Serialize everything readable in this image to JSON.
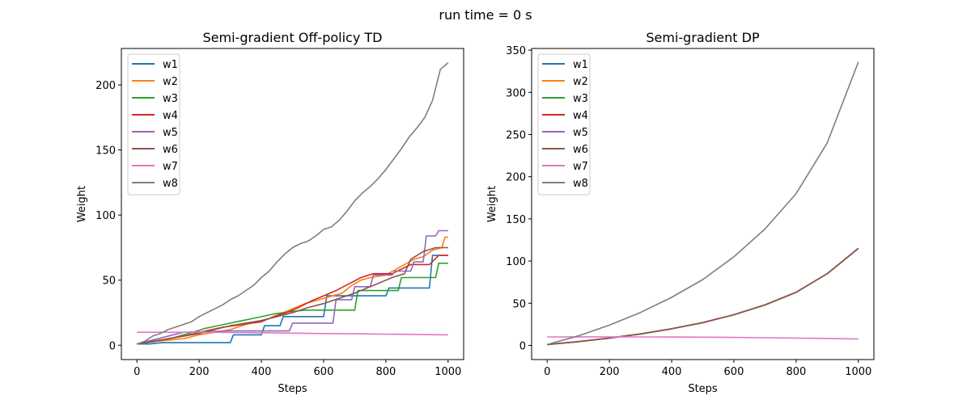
{
  "suptitle": "run time = 0 s",
  "chart_data": [
    {
      "type": "line",
      "title": "Semi-gradient Off-policy TD",
      "xlabel": "Steps",
      "ylabel": "Weight",
      "xlim": [
        -50,
        1050
      ],
      "ylim": [
        -11,
        228
      ],
      "xticks": [
        0,
        200,
        400,
        600,
        800,
        1000
      ],
      "yticks": [
        0,
        50,
        100,
        150,
        200
      ],
      "grid": false,
      "legend": "upper left",
      "series": [
        {
          "name": "w1",
          "color": "#1f77b4",
          "x": [
            0,
            40,
            80,
            300,
            310,
            400,
            410,
            460,
            470,
            600,
            610,
            800,
            810,
            940,
            950,
            1000
          ],
          "y": [
            1,
            1,
            2,
            2,
            8,
            8,
            15,
            15,
            22,
            22,
            38,
            38,
            44,
            44,
            69,
            69
          ]
        },
        {
          "name": "w2",
          "color": "#ff7f0e",
          "x": [
            0,
            60,
            150,
            200,
            300,
            350,
            420,
            460,
            500,
            540,
            570,
            600,
            660,
            690,
            720,
            750,
            800,
            830,
            860,
            890,
            920,
            950,
            980,
            990,
            1000
          ],
          "y": [
            1,
            3,
            5,
            8,
            12,
            16,
            20,
            24,
            28,
            32,
            34,
            36,
            40,
            46,
            50,
            52,
            54,
            58,
            62,
            66,
            68,
            73,
            75,
            83,
            83
          ]
        },
        {
          "name": "w3",
          "color": "#2ca02c",
          "x": [
            0,
            60,
            120,
            180,
            220,
            260,
            300,
            340,
            380,
            440,
            500,
            540,
            580,
            700,
            710,
            840,
            850,
            960,
            970,
            1000
          ],
          "y": [
            1,
            3,
            6,
            10,
            13,
            15,
            17,
            19,
            21,
            24,
            26,
            27,
            27,
            27,
            42,
            42,
            52,
            52,
            63,
            63
          ]
        },
        {
          "name": "w4",
          "color": "#d62728",
          "x": [
            0,
            80,
            150,
            220,
            280,
            340,
            400,
            440,
            480,
            520,
            560,
            600,
            640,
            680,
            720,
            760,
            820,
            880,
            940,
            970,
            1000
          ],
          "y": [
            1,
            4,
            7,
            11,
            14,
            16,
            18,
            22,
            25,
            29,
            34,
            38,
            42,
            47,
            52,
            55,
            55,
            62,
            62,
            69,
            69
          ]
        },
        {
          "name": "w5",
          "color": "#9467bd",
          "x": [
            0,
            150,
            300,
            400,
            490,
            500,
            630,
            640,
            690,
            700,
            750,
            760,
            820,
            830,
            880,
            890,
            920,
            930,
            960,
            970,
            1000
          ],
          "y": [
            1,
            10,
            11,
            11,
            11,
            17,
            17,
            35,
            35,
            45,
            45,
            54,
            54,
            57,
            57,
            64,
            64,
            84,
            84,
            88,
            88
          ]
        },
        {
          "name": "w6",
          "color": "#8c564b",
          "x": [
            0,
            100,
            200,
            250,
            300,
            350,
            400,
            450,
            500,
            550,
            600,
            650,
            700,
            740,
            780,
            820,
            860,
            880,
            920,
            960,
            1000
          ],
          "y": [
            1,
            5,
            9,
            12,
            15,
            17,
            19,
            22,
            25,
            29,
            32,
            36,
            40,
            44,
            48,
            52,
            55,
            66,
            72,
            75,
            75
          ]
        },
        {
          "name": "w7",
          "color": "#e377c2",
          "x": [
            0,
            100,
            200,
            300,
            400,
            500,
            600,
            700,
            800,
            900,
            1000
          ],
          "y": [
            10,
            10,
            10,
            9.8,
            9.6,
            9.3,
            9,
            8.8,
            8.5,
            8.3,
            8
          ]
        },
        {
          "name": "w8",
          "color": "#7f7f7f",
          "x": [
            0,
            25,
            50,
            75,
            100,
            125,
            150,
            175,
            200,
            225,
            250,
            275,
            300,
            325,
            350,
            375,
            400,
            425,
            450,
            475,
            500,
            525,
            550,
            575,
            600,
            625,
            650,
            675,
            700,
            725,
            750,
            775,
            800,
            825,
            850,
            875,
            900,
            925,
            950,
            975,
            1000
          ],
          "y": [
            1,
            3,
            7,
            9,
            12,
            14,
            16,
            18,
            22,
            25,
            28,
            31,
            35,
            38,
            42,
            46,
            52,
            57,
            64,
            70,
            75,
            78,
            80,
            84,
            89,
            91,
            96,
            103,
            111,
            117,
            122,
            128,
            135,
            143,
            151,
            160,
            167,
            175,
            188,
            212,
            217
          ]
        }
      ]
    },
    {
      "type": "line",
      "title": "Semi-gradient DP",
      "xlabel": "Steps",
      "ylabel": "Weight",
      "xlim": [
        -50,
        1050
      ],
      "ylim": [
        -16.8,
        352
      ],
      "xticks": [
        0,
        200,
        400,
        600,
        800,
        1000
      ],
      "yticks": [
        0,
        50,
        100,
        150,
        200,
        250,
        300,
        350
      ],
      "grid": false,
      "legend": "upper left",
      "series": [
        {
          "name": "w1",
          "color": "#1f77b4",
          "x": [
            0,
            100,
            200,
            300,
            400,
            500,
            600,
            700,
            800,
            900,
            1000
          ],
          "y": [
            1,
            4.5,
            8.7,
            13.6,
            19.7,
            27,
            36.4,
            48,
            63,
            85,
            115
          ]
        },
        {
          "name": "w2",
          "color": "#ff7f0e",
          "x": [
            0,
            100,
            200,
            300,
            400,
            500,
            600,
            700,
            800,
            900,
            1000
          ],
          "y": [
            1,
            4.5,
            8.7,
            13.6,
            19.7,
            27,
            36.4,
            48,
            63,
            85,
            115
          ]
        },
        {
          "name": "w3",
          "color": "#2ca02c",
          "x": [
            0,
            100,
            200,
            300,
            400,
            500,
            600,
            700,
            800,
            900,
            1000
          ],
          "y": [
            1,
            4.5,
            8.7,
            13.6,
            19.7,
            27,
            36.4,
            48,
            63,
            85,
            115
          ]
        },
        {
          "name": "w4",
          "color": "#d62728",
          "x": [
            0,
            100,
            200,
            300,
            400,
            500,
            600,
            700,
            800,
            900,
            1000
          ],
          "y": [
            1,
            4.5,
            8.7,
            13.6,
            19.7,
            27,
            36.4,
            48,
            63,
            85,
            115
          ]
        },
        {
          "name": "w5",
          "color": "#9467bd",
          "x": [
            0,
            100,
            200,
            300,
            400,
            500,
            600,
            700,
            800,
            900,
            1000
          ],
          "y": [
            1,
            4.5,
            8.7,
            13.6,
            19.7,
            27,
            36.4,
            48,
            63,
            85,
            115
          ]
        },
        {
          "name": "w6",
          "color": "#8c564b",
          "x": [
            0,
            100,
            200,
            300,
            400,
            500,
            600,
            700,
            800,
            900,
            1000
          ],
          "y": [
            1,
            4.5,
            8.7,
            13.6,
            19.7,
            27,
            36.4,
            48,
            63,
            85,
            115
          ]
        },
        {
          "name": "w7",
          "color": "#e377c2",
          "x": [
            0,
            100,
            200,
            300,
            400,
            500,
            600,
            700,
            800,
            900,
            1000
          ],
          "y": [
            10,
            10.1,
            10.1,
            10,
            9.9,
            9.7,
            9.4,
            9.1,
            8.7,
            8.2,
            7.5
          ]
        },
        {
          "name": "w8",
          "color": "#7f7f7f",
          "x": [
            0,
            100,
            200,
            300,
            400,
            500,
            600,
            700,
            800,
            900,
            1000
          ],
          "y": [
            1,
            11.3,
            24,
            39,
            57,
            78,
            105,
            138,
            180,
            240,
            336
          ]
        }
      ]
    }
  ]
}
